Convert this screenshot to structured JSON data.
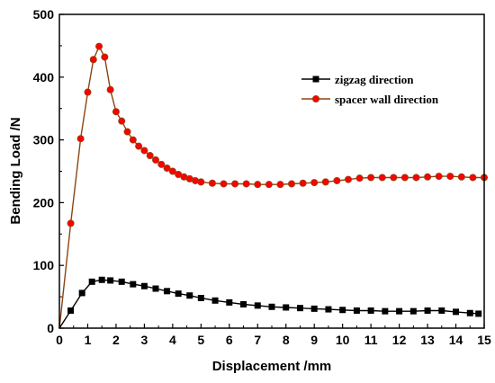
{
  "chart_data": {
    "type": "line",
    "xlabel": "Displacement /mm",
    "ylabel": "Bending Load /N",
    "xlim": [
      0,
      15
    ],
    "ylim": [
      0,
      500
    ],
    "x_ticks": [
      "0",
      "1",
      "2",
      "3",
      "4",
      "5",
      "6",
      "7",
      "8",
      "9",
      "10",
      "11",
      "12",
      "13",
      "14",
      "15"
    ],
    "y_ticks": [
      "0",
      "100",
      "200",
      "300",
      "400",
      "500"
    ],
    "grid": false,
    "legend_position": "top-right",
    "series": [
      {
        "name": "zigzag direction",
        "color": "#000000",
        "marker": "square",
        "x": [
          0,
          0.4,
          0.8,
          1.15,
          1.5,
          1.8,
          2.2,
          2.6,
          3.0,
          3.4,
          3.8,
          4.2,
          4.6,
          5.0,
          5.5,
          6.0,
          6.5,
          7.0,
          7.5,
          8.0,
          8.5,
          9.0,
          9.5,
          10.0,
          10.5,
          11.0,
          11.5,
          12.0,
          12.5,
          13.0,
          13.5,
          14.0,
          14.5,
          14.8
        ],
        "y": [
          0,
          28,
          56,
          74,
          77,
          76,
          74,
          70,
          67,
          63,
          59,
          55,
          52,
          48,
          44,
          41,
          38,
          36,
          34,
          33,
          32,
          31,
          30,
          29,
          28,
          28,
          27,
          27,
          27,
          28,
          28,
          26,
          24,
          23
        ]
      },
      {
        "name": "spacer wall direction",
        "color": "#ff0000",
        "line_color": "#8b4513",
        "marker": "circle",
        "x": [
          0,
          0.4,
          0.75,
          1.0,
          1.2,
          1.4,
          1.6,
          1.8,
          2.0,
          2.2,
          2.4,
          2.6,
          2.8,
          3.0,
          3.2,
          3.4,
          3.6,
          3.8,
          4.0,
          4.2,
          4.4,
          4.6,
          4.8,
          5.0,
          5.4,
          5.8,
          6.2,
          6.6,
          7.0,
          7.4,
          7.8,
          8.2,
          8.6,
          9.0,
          9.4,
          9.8,
          10.2,
          10.6,
          11.0,
          11.4,
          11.8,
          12.2,
          12.6,
          13.0,
          13.4,
          13.8,
          14.2,
          14.6,
          15.0
        ],
        "y": [
          0,
          167,
          302,
          376,
          428,
          449,
          432,
          380,
          345,
          330,
          313,
          300,
          290,
          283,
          275,
          268,
          261,
          255,
          250,
          245,
          241,
          238,
          235,
          233,
          231,
          230,
          230,
          230,
          229,
          229,
          229,
          230,
          231,
          232,
          233,
          235,
          237,
          239,
          240,
          240,
          240,
          240,
          240,
          241,
          242,
          242,
          241,
          240,
          240
        ]
      }
    ]
  }
}
